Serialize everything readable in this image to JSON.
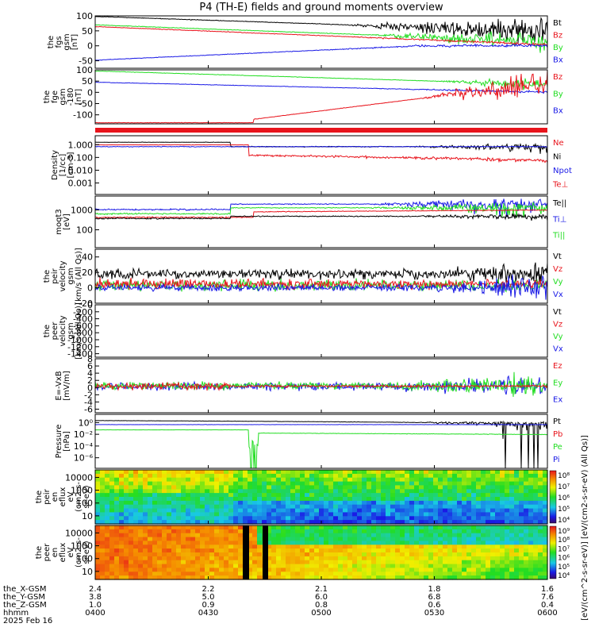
{
  "title": "P4 (TH-E) fields and ground moments overview",
  "colors": {
    "black": "#000000",
    "red": "#e8141c",
    "green": "#22dd22",
    "blue": "#1a1ae6"
  },
  "chart_data": [
    {
      "type": "line",
      "ylabel": [
        "the",
        "fgs",
        "gsm",
        "[nT]"
      ],
      "ylim": [
        -75,
        100
      ],
      "yticks": [
        100,
        50,
        0,
        -50
      ],
      "legend": [
        {
          "name": "Bt",
          "color": "black"
        },
        {
          "name": "Bz",
          "color": "red"
        },
        {
          "name": "By",
          "color": "green"
        },
        {
          "name": "Bx",
          "color": "blue"
        }
      ]
    },
    {
      "type": "line",
      "ylabel": [
        "the",
        "fge",
        "gsm",
        "-180",
        "[nT]"
      ],
      "ylim": [
        -140,
        100
      ],
      "yticks": [
        100,
        50,
        0,
        -50,
        -100
      ],
      "legend": [
        {
          "name": "Bz",
          "color": "red"
        },
        {
          "name": "By",
          "color": "green"
        },
        {
          "name": "Bx",
          "color": "blue"
        }
      ]
    },
    {
      "type": "line",
      "ylabel": [
        "Density",
        "[1/cc]",
        "[cm-3]"
      ],
      "log": true,
      "ylim": [
        0.0005,
        5
      ],
      "yticks": [
        "1.000",
        "0.100",
        "0.010",
        "0.001"
      ],
      "legend": [
        {
          "name": "Ne",
          "color": "red"
        },
        {
          "name": "Ni",
          "color": "black"
        },
        {
          "name": "Npot",
          "color": "blue"
        },
        {
          "name": "Te⊥",
          "color": "red"
        }
      ]
    },
    {
      "type": "line",
      "ylabel": [
        "moqt3",
        "[eV]"
      ],
      "log": true,
      "ylim": [
        40,
        8000
      ],
      "yticks": [
        "1000",
        "100"
      ],
      "legend": [
        {
          "name": "Te||",
          "color": "black"
        },
        {
          "name": "Ti⊥",
          "color": "blue"
        },
        {
          "name": "Ti||",
          "color": "green"
        }
      ]
    },
    {
      "type": "line",
      "ylabel": [
        "the",
        "peir",
        "velocity",
        "gsm",
        "[km/s (All Qs)]"
      ],
      "ylim": [
        -20,
        50
      ],
      "yticks": [
        40,
        20,
        0,
        -20
      ],
      "legend": [
        {
          "name": "Vt",
          "color": "black"
        },
        {
          "name": "Vz",
          "color": "red"
        },
        {
          "name": "Vy",
          "color": "green"
        },
        {
          "name": "Vx",
          "color": "blue"
        }
      ]
    },
    {
      "type": "line",
      "ylabel": [
        "the",
        "peer",
        "velocity",
        "gsm",
        "[km/s (All Qs)]"
      ],
      "ylim": [
        -1500,
        0
      ],
      "yticks": [
        0,
        -200,
        -400,
        -600,
        -800,
        -1000,
        -1200,
        -1400
      ],
      "legend": [
        {
          "name": "Vt",
          "color": "black"
        },
        {
          "name": "Vz",
          "color": "red"
        },
        {
          "name": "Vy",
          "color": "green"
        },
        {
          "name": "Vx",
          "color": "blue"
        }
      ]
    },
    {
      "type": "line",
      "ylabel": [
        "E=-VxB",
        "[mV/m]"
      ],
      "ylim": [
        -7,
        8
      ],
      "yticks": [
        8,
        6,
        4,
        2,
        0,
        -2,
        -4,
        -6
      ],
      "legend": [
        {
          "name": "Ez",
          "color": "red"
        },
        {
          "name": "Ey",
          "color": "green"
        },
        {
          "name": "Ex",
          "color": "blue"
        }
      ]
    },
    {
      "type": "line",
      "ylabel": [
        "Pressure",
        "[nPa]"
      ],
      "log": true,
      "yticks": [
        "10⁰",
        "10⁻²",
        "10⁻⁴",
        "10⁻⁶"
      ],
      "legend": [
        {
          "name": "Pt",
          "color": "black"
        },
        {
          "name": "Pb",
          "color": "red"
        },
        {
          "name": "Pe",
          "color": "green"
        },
        {
          "name": "Pi",
          "color": "blue"
        }
      ]
    },
    {
      "type": "heatmap",
      "ylabel": [
        "the",
        "peir",
        "en",
        "eflux",
        "eV",
        "(cm2-s-",
        "sr-eV)"
      ],
      "log": true,
      "yticks": [
        "10000",
        "1000",
        "100",
        "10"
      ],
      "colorbar": {
        "ticks": [
          "10⁸",
          "10⁷",
          "10⁶",
          "10⁵",
          "10⁴"
        ]
      }
    },
    {
      "type": "heatmap",
      "ylabel": [
        "the",
        "peer",
        "en",
        "eflux",
        "eV",
        "(cm2-s-",
        "sr-eV)"
      ],
      "log": true,
      "yticks": [
        "10000",
        "1000",
        "100",
        "10"
      ],
      "colorbar": {
        "ticks": [
          "10⁹",
          "10⁸",
          "10⁷",
          "10⁶",
          "10⁵",
          "10⁴"
        ]
      }
    }
  ],
  "colorbar_label": "[eV/(cm^2-s-sr-eV)] [eV/(cm2-s-sr-eV) (All Qs)]",
  "xaxis": {
    "row_labels": [
      "the_X-GSM",
      "the_Y-GSM",
      "the_Z-GSM",
      "hhmm",
      "2025 Feb 16"
    ],
    "ticks": [
      {
        "x": "2.4",
        "y": "3.8",
        "z": "1.0",
        "t": "0400"
      },
      {
        "x": "2.2",
        "y": "5.0",
        "z": "0.9",
        "t": "0430"
      },
      {
        "x": "2.1",
        "y": "6.0",
        "z": "0.8",
        "t": "0500"
      },
      {
        "x": "1.8",
        "y": "6.8",
        "z": "0.6",
        "t": "0530"
      },
      {
        "x": "1.6",
        "y": "7.6",
        "z": "0.4",
        "t": "0600"
      }
    ]
  }
}
